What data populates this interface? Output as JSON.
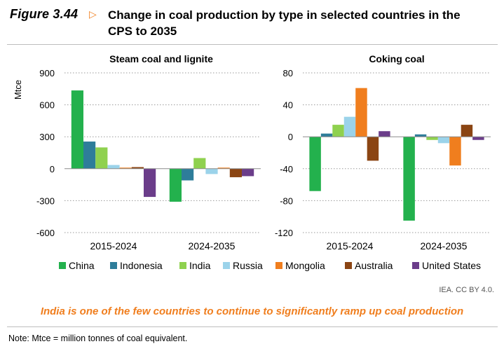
{
  "figure": {
    "label": "Figure 3.44",
    "arrow": "▷",
    "title": "Change in coal production by type in selected countries in the CPS to 2035"
  },
  "colors": {
    "China": "#23b14d",
    "Indonesia": "#2e7d9a",
    "India": "#8fd14f",
    "Russia": "#9bd3ea",
    "Mongolia": "#f07e1e",
    "Australia": "#8b4513",
    "United States": "#6b3d8a",
    "accent": "#f07e1e"
  },
  "chart_data": [
    {
      "type": "bar",
      "title": "Steam coal and lignite",
      "ylabel": "Mtce",
      "categories": [
        "2015-2024",
        "2024-2035"
      ],
      "ylim": [
        -600,
        900
      ],
      "yticks": [
        -600,
        -300,
        0,
        300,
        600,
        900
      ],
      "grid": true,
      "series": [
        {
          "name": "China",
          "values": [
            735,
            -310
          ]
        },
        {
          "name": "Indonesia",
          "values": [
            255,
            -110
          ]
        },
        {
          "name": "India",
          "values": [
            200,
            100
          ]
        },
        {
          "name": "Russia",
          "values": [
            35,
            -50
          ]
        },
        {
          "name": "Mongolia",
          "values": [
            10,
            10
          ]
        },
        {
          "name": "Australia",
          "values": [
            15,
            -80
          ]
        },
        {
          "name": "United States",
          "values": [
            -265,
            -70
          ]
        }
      ]
    },
    {
      "type": "bar",
      "title": "Coking coal",
      "ylabel": "",
      "categories": [
        "2015-2024",
        "2024-2035"
      ],
      "ylim": [
        -120,
        80
      ],
      "yticks": [
        -120,
        -80,
        -40,
        0,
        40,
        80
      ],
      "grid": true,
      "series": [
        {
          "name": "China",
          "values": [
            -68,
            -105
          ]
        },
        {
          "name": "Indonesia",
          "values": [
            4,
            3
          ]
        },
        {
          "name": "India",
          "values": [
            15,
            -4
          ]
        },
        {
          "name": "Russia",
          "values": [
            25,
            -8
          ]
        },
        {
          "name": "Mongolia",
          "values": [
            61,
            -36
          ]
        },
        {
          "name": "Australia",
          "values": [
            -30,
            15
          ]
        },
        {
          "name": "United States",
          "values": [
            7,
            -4
          ]
        }
      ]
    }
  ],
  "legend": {
    "position": "bottom",
    "entries": [
      "China",
      "Indonesia",
      "India",
      "Russia",
      "Mongolia",
      "Australia",
      "United States"
    ]
  },
  "credit": "IEA. CC BY 4.0.",
  "caption": "India is one of the few countries to continue to significantly ramp up coal production",
  "note": "Note: Mtce = million tonnes of coal equivalent."
}
